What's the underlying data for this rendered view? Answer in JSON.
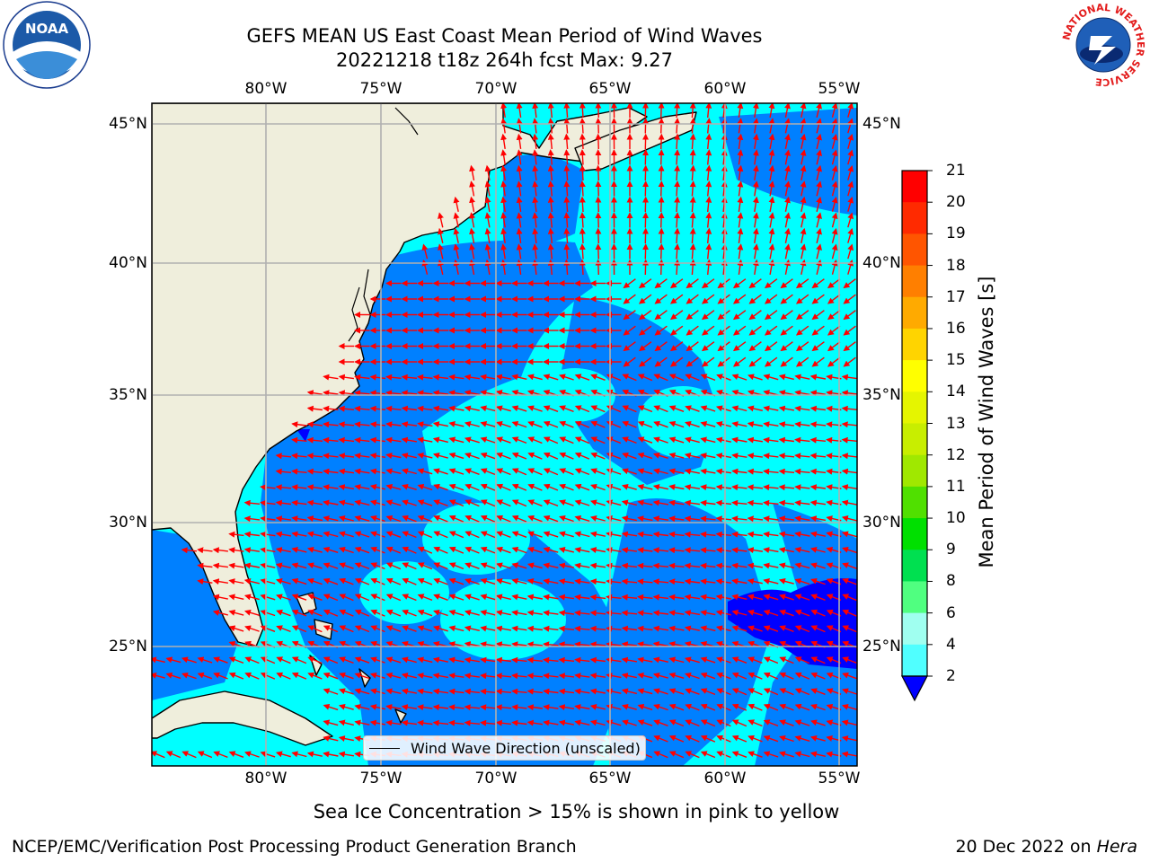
{
  "title": {
    "line1": "GEFS MEAN US East Coast Mean Period of Wind Waves",
    "line2": "20221218 t18z 264h fcst    Max: 9.27"
  },
  "map": {
    "lon_ticks": [
      "80°W",
      "75°W",
      "70°W",
      "65°W",
      "60°W",
      "55°W"
    ],
    "lat_ticks": [
      "45°N",
      "40°N",
      "35°N",
      "30°N",
      "25°N"
    ],
    "legend_label": "Wind Wave Direction (unscaled)",
    "land_color": "#efeedc",
    "arrow_color": "#ff0000",
    "grid_color": "#b0b0b0"
  },
  "colorbar": {
    "label": "Mean Period of Wind Waves [s]",
    "ticks": [
      "21",
      "20",
      "19",
      "18",
      "17",
      "16",
      "15",
      "14",
      "13",
      "12",
      "11",
      "10",
      "9",
      "8",
      "6",
      "4",
      "2"
    ],
    "colors": [
      "#ff0000",
      "#ff2a00",
      "#ff5500",
      "#ff7f00",
      "#ffaa00",
      "#ffd400",
      "#ffff00",
      "#e5f500",
      "#c8ee00",
      "#a0e800",
      "#50e000",
      "#00e000",
      "#00e050",
      "#50ff80",
      "#a0fff0",
      "#50ffff",
      "#00ffff",
      "#0080ff"
    ],
    "extend_color": "#0000ff"
  },
  "logos": {
    "noaa": "NOAA",
    "nws_ring": "NATIONAL WEATHER SERVICE"
  },
  "footer": {
    "sea_ice": "Sea Ice Concentration > 15% is shown in pink to yellow",
    "left": "NCEP/EMC/Verification Post Processing Product Generation Branch",
    "date": "20 Dec 2022 on ",
    "machine": "Hera"
  }
}
